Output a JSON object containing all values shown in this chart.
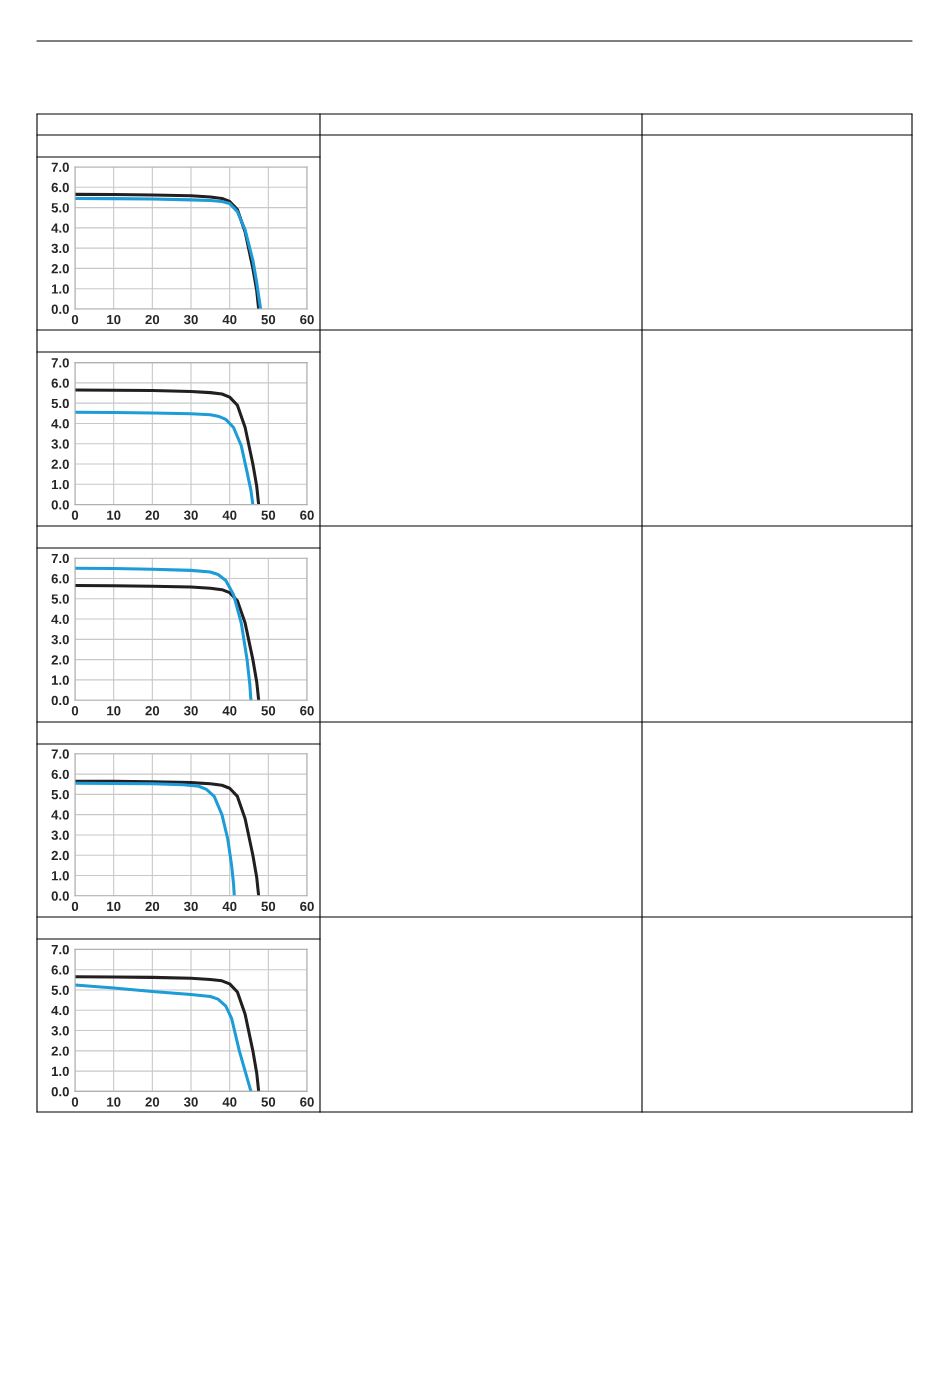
{
  "chart_data": [
    {
      "type": "line",
      "xlim": [
        0,
        60
      ],
      "ylim": [
        0,
        7
      ],
      "xticks": [
        0,
        10,
        20,
        30,
        40,
        50,
        60
      ],
      "yticks": [
        {
          "value": 0,
          "label": "0.0"
        },
        {
          "value": 1,
          "label": "1.0"
        },
        {
          "value": 2,
          "label": "2.0"
        },
        {
          "value": 3,
          "label": "3.0"
        },
        {
          "value": 4,
          "label": "4.0"
        },
        {
          "value": 5,
          "label": "5.0"
        },
        {
          "value": 6,
          "label": "6.0"
        },
        {
          "value": 7,
          "label": "7.0"
        }
      ],
      "grid": true,
      "series": [
        {
          "color": "#231f20",
          "x": [
            0,
            10,
            20,
            30,
            35,
            38,
            40,
            42,
            44,
            46,
            47,
            47.5
          ],
          "values": [
            5.65,
            5.64,
            5.62,
            5.58,
            5.52,
            5.45,
            5.3,
            4.9,
            3.8,
            2.0,
            0.9,
            0
          ]
        },
        {
          "color": "#1e9cd7",
          "x": [
            0,
            10,
            20,
            30,
            35,
            38,
            40,
            42,
            44,
            46,
            47,
            48
          ],
          "values": [
            5.45,
            5.44,
            5.42,
            5.38,
            5.35,
            5.3,
            5.2,
            4.8,
            3.9,
            2.4,
            1.3,
            0
          ]
        }
      ]
    },
    {
      "type": "line",
      "xlim": [
        0,
        60
      ],
      "ylim": [
        0,
        7
      ],
      "xticks": [
        0,
        10,
        20,
        30,
        40,
        50,
        60
      ],
      "yticks": [
        {
          "value": 0,
          "label": "0.0"
        },
        {
          "value": 1,
          "label": "1.0"
        },
        {
          "value": 2,
          "label": "2.0"
        },
        {
          "value": 3,
          "label": "3.0"
        },
        {
          "value": 4,
          "label": "4.0"
        },
        {
          "value": 5,
          "label": "5.0"
        },
        {
          "value": 6,
          "label": "6.0"
        },
        {
          "value": 7,
          "label": "7.0"
        }
      ],
      "grid": true,
      "series": [
        {
          "color": "#231f20",
          "x": [
            0,
            10,
            20,
            30,
            35,
            38,
            40,
            42,
            44,
            46,
            47,
            47.5
          ],
          "values": [
            5.65,
            5.64,
            5.62,
            5.58,
            5.52,
            5.45,
            5.3,
            4.9,
            3.8,
            2.0,
            0.9,
            0
          ]
        },
        {
          "color": "#1e9cd7",
          "x": [
            0,
            10,
            20,
            30,
            35,
            37,
            39,
            41,
            43,
            44.5,
            45.5,
            46
          ],
          "values": [
            4.55,
            4.54,
            4.52,
            4.48,
            4.43,
            4.36,
            4.2,
            3.8,
            2.9,
            1.6,
            0.7,
            0
          ]
        }
      ]
    },
    {
      "type": "line",
      "xlim": [
        0,
        60
      ],
      "ylim": [
        0,
        7
      ],
      "xticks": [
        0,
        10,
        20,
        30,
        40,
        50,
        60
      ],
      "yticks": [
        {
          "value": 0,
          "label": "0.0"
        },
        {
          "value": 1,
          "label": "1.0"
        },
        {
          "value": 2,
          "label": "2.0"
        },
        {
          "value": 3,
          "label": "3.0"
        },
        {
          "value": 4,
          "label": "4.0"
        },
        {
          "value": 5,
          "label": "5.0"
        },
        {
          "value": 6,
          "label": "6.0"
        },
        {
          "value": 7,
          "label": "7.0"
        }
      ],
      "grid": true,
      "series": [
        {
          "color": "#231f20",
          "x": [
            0,
            10,
            20,
            30,
            35,
            38,
            40,
            42,
            44,
            46,
            47,
            47.5
          ],
          "values": [
            5.65,
            5.64,
            5.62,
            5.58,
            5.52,
            5.45,
            5.3,
            4.9,
            3.8,
            2.0,
            0.9,
            0
          ]
        },
        {
          "color": "#1e9cd7",
          "x": [
            0,
            10,
            20,
            30,
            35,
            37,
            39,
            41,
            43,
            44.5,
            45.2,
            45.5
          ],
          "values": [
            6.5,
            6.49,
            6.46,
            6.4,
            6.32,
            6.2,
            5.9,
            5.2,
            3.8,
            2.0,
            0.8,
            0
          ]
        }
      ]
    },
    {
      "type": "line",
      "xlim": [
        0,
        60
      ],
      "ylim": [
        0,
        7
      ],
      "xticks": [
        0,
        10,
        20,
        30,
        40,
        50,
        60
      ],
      "yticks": [
        {
          "value": 0,
          "label": "0.0"
        },
        {
          "value": 1,
          "label": "1.0"
        },
        {
          "value": 2,
          "label": "2.0"
        },
        {
          "value": 3,
          "label": "3.0"
        },
        {
          "value": 4,
          "label": "4.0"
        },
        {
          "value": 5,
          "label": "5.0"
        },
        {
          "value": 6,
          "label": "6.0"
        },
        {
          "value": 7,
          "label": "7.0"
        }
      ],
      "grid": true,
      "series": [
        {
          "color": "#231f20",
          "x": [
            0,
            10,
            20,
            30,
            35,
            38,
            40,
            42,
            44,
            46,
            47,
            47.5
          ],
          "values": [
            5.65,
            5.64,
            5.62,
            5.58,
            5.52,
            5.45,
            5.3,
            4.9,
            3.8,
            2.0,
            0.9,
            0
          ]
        },
        {
          "color": "#1e9cd7",
          "x": [
            0,
            10,
            20,
            28,
            32,
            34,
            36,
            38,
            39.5,
            40.5,
            41,
            41.2
          ],
          "values": [
            5.55,
            5.54,
            5.52,
            5.47,
            5.4,
            5.25,
            4.9,
            4.0,
            2.8,
            1.5,
            0.6,
            0
          ]
        }
      ]
    },
    {
      "type": "line",
      "xlim": [
        0,
        60
      ],
      "ylim": [
        0,
        7
      ],
      "xticks": [
        0,
        10,
        20,
        30,
        40,
        50,
        60
      ],
      "yticks": [
        {
          "value": 0,
          "label": "0.0"
        },
        {
          "value": 1,
          "label": "1.0"
        },
        {
          "value": 2,
          "label": "2.0"
        },
        {
          "value": 3,
          "label": "3.0"
        },
        {
          "value": 4,
          "label": "4.0"
        },
        {
          "value": 5,
          "label": "5.0"
        },
        {
          "value": 6,
          "label": "6.0"
        },
        {
          "value": 7,
          "label": "7.0"
        }
      ],
      "grid": true,
      "series": [
        {
          "color": "#231f20",
          "x": [
            0,
            10,
            20,
            30,
            35,
            38,
            40,
            42,
            44,
            46,
            47,
            47.5
          ],
          "values": [
            5.65,
            5.64,
            5.62,
            5.58,
            5.52,
            5.45,
            5.3,
            4.9,
            3.8,
            2.0,
            0.9,
            0
          ]
        },
        {
          "color": "#1e9cd7",
          "x": [
            0,
            10,
            20,
            30,
            35,
            37,
            39,
            40.5,
            41.5,
            42.5,
            44,
            45.5
          ],
          "values": [
            5.25,
            5.1,
            4.92,
            4.78,
            4.68,
            4.55,
            4.2,
            3.6,
            2.8,
            2.0,
            1.0,
            0
          ]
        }
      ]
    }
  ]
}
